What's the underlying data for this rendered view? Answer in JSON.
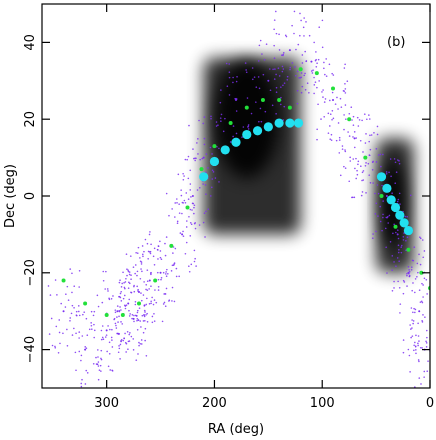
{
  "chart_data": {
    "type": "scatter",
    "panel_label": "(b)",
    "xlabel": "RA (deg)",
    "ylabel": "Dec (deg)",
    "xlim": [
      360,
      0
    ],
    "ylim": [
      -50,
      50
    ],
    "x_reversed": true,
    "grid": false,
    "xticks": [
      300,
      200,
      100,
      0
    ],
    "yticks": [
      -40,
      -20,
      0,
      20,
      40
    ],
    "colors": {
      "stars": "#7b2ff2",
      "model_green": "#22e03a",
      "model_cyan": "#22e0f0",
      "density": "#000000"
    },
    "density_regions": [
      {
        "ra_range": [
          210,
          120
        ],
        "dec_range": [
          -10,
          36
        ],
        "peak_ra": 170,
        "peak_dec": 20
      },
      {
        "ra_range": [
          50,
          15
        ],
        "dec_range": [
          -20,
          15
        ],
        "peak_ra": 35,
        "peak_dec": -2
      }
    ],
    "series": [
      {
        "kind": "scattered stars",
        "points": [
          [
            290,
            -30
          ],
          [
            280,
            -28
          ],
          [
            300,
            -35
          ],
          [
            270,
            -25
          ],
          [
            320,
            -40
          ],
          [
            340,
            -30
          ],
          [
            250,
            -20
          ],
          [
            230,
            -10
          ],
          [
            220,
            0
          ],
          [
            210,
            10
          ],
          [
            260,
            -22
          ],
          [
            275,
            -32
          ],
          [
            180,
            25
          ],
          [
            150,
            30
          ],
          [
            130,
            38
          ],
          [
            110,
            35
          ],
          [
            90,
            25
          ],
          [
            70,
            15
          ],
          [
            60,
            10
          ],
          [
            40,
            0
          ],
          [
            30,
            -10
          ],
          [
            20,
            -20
          ],
          [
            10,
            -30
          ],
          [
            5,
            -40
          ]
        ]
      },
      {
        "kind": "model stream (green)",
        "points": [
          [
            340,
            -22
          ],
          [
            320,
            -28
          ],
          [
            300,
            -31
          ],
          [
            285,
            -31
          ],
          [
            270,
            -28
          ],
          [
            255,
            -22
          ],
          [
            240,
            -13
          ],
          [
            225,
            -3
          ],
          [
            212,
            7
          ],
          [
            200,
            13
          ],
          [
            185,
            19
          ],
          [
            170,
            23
          ],
          [
            155,
            25
          ],
          [
            140,
            25
          ],
          [
            130,
            23
          ],
          [
            120,
            33
          ],
          [
            105,
            32
          ],
          [
            90,
            28
          ],
          [
            75,
            20
          ],
          [
            60,
            10
          ],
          [
            45,
            0
          ],
          [
            32,
            -8
          ],
          [
            20,
            -14
          ],
          [
            8,
            -20
          ],
          [
            0,
            -24
          ]
        ]
      },
      {
        "kind": "model stream (cyan)",
        "points": [
          [
            210,
            5
          ],
          [
            200,
            9
          ],
          [
            190,
            12
          ],
          [
            180,
            14
          ],
          [
            170,
            16
          ],
          [
            160,
            17
          ],
          [
            150,
            18
          ],
          [
            140,
            19
          ],
          [
            130,
            19
          ],
          [
            122,
            19
          ],
          [
            45,
            5
          ],
          [
            40,
            2
          ],
          [
            36,
            -1
          ],
          [
            32,
            -3
          ],
          [
            28,
            -5
          ],
          [
            24,
            -7
          ],
          [
            20,
            -9
          ]
        ]
      }
    ]
  }
}
